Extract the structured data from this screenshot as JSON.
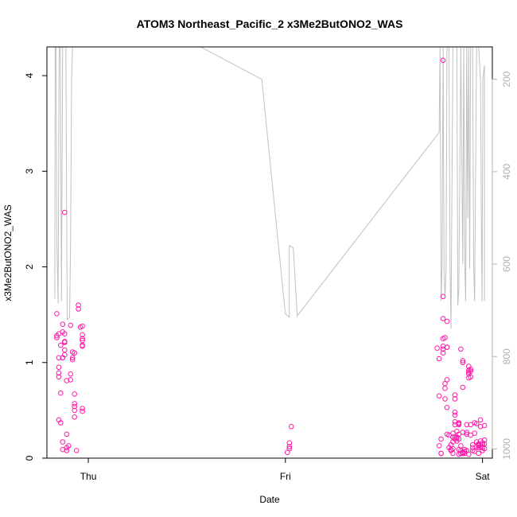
{
  "chart_data": {
    "type": "scatter",
    "title": "ATOM3 Northeast_Pacific_2 x3Me2ButONO2_WAS",
    "xlabel": "Date",
    "ylabel": "x3Me2ButONO2_WAS",
    "x_ticks": [
      {
        "label": "Thu",
        "x": 1.0
      },
      {
        "label": "Fri",
        "x": 2.0
      },
      {
        "label": "Sat",
        "x": 3.0
      }
    ],
    "xlim": [
      0.79,
      3.05
    ],
    "ylim": [
      0,
      4.3
    ],
    "y_ticks": [
      0,
      1,
      2,
      3,
      4
    ],
    "y2_ticks": [
      200,
      400,
      600,
      800,
      1000
    ],
    "y2lim": [
      1020,
      130
    ],
    "point_color": "#ff1aa8",
    "line_color": "#c0c0c0",
    "series": [
      {
        "values": [
          [
            0.84,
            1.28
          ],
          [
            0.84,
            1.51
          ],
          [
            0.84,
            1.26
          ],
          [
            0.85,
            1.3
          ],
          [
            0.85,
            1.05
          ],
          [
            0.85,
            0.95
          ],
          [
            0.85,
            0.89
          ],
          [
            0.85,
            0.85
          ],
          [
            0.85,
            0.4
          ],
          [
            0.86,
            1.18
          ],
          [
            0.86,
            0.68
          ],
          [
            0.86,
            0.37
          ],
          [
            0.87,
            1.4
          ],
          [
            0.87,
            1.32
          ],
          [
            0.87,
            1.05
          ],
          [
            0.87,
            1.05
          ],
          [
            0.87,
            0.17
          ],
          [
            0.87,
            0.09
          ],
          [
            0.88,
            2.57
          ],
          [
            0.88,
            1.3
          ],
          [
            0.88,
            1.22
          ],
          [
            0.88,
            1.21
          ],
          [
            0.88,
            1.13
          ],
          [
            0.88,
            1.08
          ],
          [
            0.89,
            0.81
          ],
          [
            0.89,
            0.25
          ],
          [
            0.89,
            0.11
          ],
          [
            0.89,
            0.08
          ],
          [
            0.9,
            0.13
          ],
          [
            0.91,
            1.39
          ],
          [
            0.91,
            0.88
          ],
          [
            0.91,
            0.82
          ],
          [
            0.92,
            1.11
          ],
          [
            0.92,
            1.05
          ],
          [
            0.92,
            1.03
          ],
          [
            0.93,
            1.1
          ],
          [
            0.93,
            0.67
          ],
          [
            0.93,
            0.57
          ],
          [
            0.93,
            0.54
          ],
          [
            0.93,
            0.5
          ],
          [
            0.93,
            0.43
          ],
          [
            0.94,
            0.08
          ],
          [
            0.95,
            1.56
          ],
          [
            0.95,
            1.6
          ],
          [
            0.96,
            1.37
          ],
          [
            0.97,
            1.38
          ],
          [
            0.97,
            1.29
          ],
          [
            0.97,
            1.25
          ],
          [
            0.97,
            1.23
          ],
          [
            0.97,
            1.18
          ],
          [
            0.97,
            1.17
          ],
          [
            0.97,
            0.52
          ],
          [
            0.97,
            0.49
          ],
          [
            2.01,
            0.06
          ],
          [
            2.02,
            0.1
          ],
          [
            2.02,
            0.16
          ],
          [
            2.02,
            0.12
          ],
          [
            2.03,
            0.33
          ],
          [
            2.77,
            1.15
          ],
          [
            2.78,
            1.04
          ],
          [
            2.78,
            0.65
          ],
          [
            2.78,
            0.13
          ],
          [
            2.79,
            0.05
          ],
          [
            2.79,
            0.05
          ],
          [
            2.79,
            0.2
          ],
          [
            2.8,
            4.16
          ],
          [
            2.8,
            1.69
          ],
          [
            2.8,
            1.46
          ],
          [
            2.8,
            1.25
          ],
          [
            2.8,
            1.17
          ],
          [
            2.8,
            1.14
          ],
          [
            2.8,
            1.1
          ],
          [
            2.81,
            1.26
          ],
          [
            2.81,
            0.78
          ],
          [
            2.81,
            0.73
          ],
          [
            2.81,
            0.62
          ],
          [
            2.82,
            1.43
          ],
          [
            2.82,
            1.16
          ],
          [
            2.82,
            1.16
          ],
          [
            2.82,
            0.82
          ],
          [
            2.82,
            0.53
          ],
          [
            2.82,
            0.25
          ],
          [
            2.83,
            0.24
          ],
          [
            2.83,
            0.11
          ],
          [
            2.84,
            0.14
          ],
          [
            2.84,
            0.09
          ],
          [
            2.84,
            0.08
          ],
          [
            2.85,
            0.1
          ],
          [
            2.85,
            0.05
          ],
          [
            2.85,
            0.22
          ],
          [
            2.85,
            0.17
          ],
          [
            2.85,
            0.26
          ],
          [
            2.85,
            0.22
          ],
          [
            2.86,
            0.62
          ],
          [
            2.86,
            0.66
          ],
          [
            2.86,
            0.48
          ],
          [
            2.86,
            0.45
          ],
          [
            2.86,
            0.38
          ],
          [
            2.86,
            0.35
          ],
          [
            2.86,
            0.2
          ],
          [
            2.86,
            0.22
          ],
          [
            2.87,
            0.28
          ],
          [
            2.87,
            0.18
          ],
          [
            2.87,
            0.21
          ],
          [
            2.87,
            0.22
          ],
          [
            2.88,
            0.35
          ],
          [
            2.88,
            0.36
          ],
          [
            2.88,
            0.37
          ],
          [
            2.88,
            0.25
          ],
          [
            2.88,
            0.2
          ],
          [
            2.88,
            0.09
          ],
          [
            2.88,
            0.04
          ],
          [
            2.89,
            1.14
          ],
          [
            2.89,
            0.13
          ],
          [
            2.89,
            0.08
          ],
          [
            2.89,
            0.05
          ],
          [
            2.9,
            1.0
          ],
          [
            2.9,
            1.02
          ],
          [
            2.9,
            0.74
          ],
          [
            2.9,
            0.27
          ],
          [
            2.9,
            0.05
          ],
          [
            2.9,
            0.06
          ],
          [
            2.9,
            0.05
          ],
          [
            2.91,
            0.07
          ],
          [
            2.91,
            0.09
          ],
          [
            2.91,
            0.05
          ],
          [
            2.92,
            0.08
          ],
          [
            2.92,
            0.35
          ],
          [
            2.92,
            0.27
          ],
          [
            2.92,
            0.25
          ],
          [
            2.93,
            0.96
          ],
          [
            2.93,
            0.92
          ],
          [
            2.93,
            0.9
          ],
          [
            2.93,
            0.88
          ],
          [
            2.93,
            0.84
          ],
          [
            2.93,
            0.04
          ],
          [
            2.94,
            0.93
          ],
          [
            2.94,
            0.91
          ],
          [
            2.94,
            0.85
          ],
          [
            2.94,
            0.35
          ],
          [
            2.94,
            0.24
          ],
          [
            2.95,
            0.08
          ],
          [
            2.95,
            0.11
          ],
          [
            2.95,
            0.14
          ],
          [
            2.96,
            0.26
          ],
          [
            2.96,
            0.37
          ],
          [
            2.96,
            0.07
          ],
          [
            2.97,
            0.36
          ],
          [
            2.97,
            0.17
          ],
          [
            2.97,
            0.12
          ],
          [
            2.98,
            0.14
          ],
          [
            2.98,
            0.13
          ],
          [
            2.98,
            0.11
          ],
          [
            2.98,
            0.15
          ],
          [
            2.98,
            0.05
          ],
          [
            2.99,
            0.4
          ],
          [
            2.99,
            0.33
          ],
          [
            2.99,
            0.18
          ],
          [
            2.99,
            0.12
          ],
          [
            3.0,
            0.16
          ],
          [
            3.0,
            0.14
          ],
          [
            3.0,
            0.11
          ],
          [
            3.0,
            0.08
          ],
          [
            3.01,
            0.34
          ],
          [
            3.01,
            0.19
          ],
          [
            3.01,
            0.15
          ],
          [
            3.01,
            0.1
          ]
        ]
      },
      {
        "axis": "right",
        "line_values": [
          [
            0.83,
            675
          ],
          [
            0.832,
            130
          ],
          [
            0.836,
            130
          ],
          [
            0.84,
            545
          ],
          [
            0.847,
            685
          ],
          [
            0.852,
            130
          ],
          [
            0.858,
            130
          ],
          [
            0.864,
            680
          ],
          [
            0.87,
            130
          ],
          [
            0.886,
            130
          ],
          [
            0.893,
            720
          ],
          [
            0.905,
            715
          ],
          [
            0.91,
            560
          ],
          [
            0.915,
            200
          ],
          [
            0.92,
            130
          ],
          [
            0.95,
            130
          ],
          [
            0.96,
            130
          ],
          [
            1.57,
            130
          ],
          [
            1.88,
            200
          ],
          [
            2.0,
            708
          ],
          [
            2.02,
            715
          ],
          [
            2.02,
            560
          ],
          [
            2.04,
            565
          ],
          [
            2.06,
            712
          ],
          [
            2.78,
            315
          ],
          [
            2.785,
            130
          ],
          [
            2.79,
            680
          ],
          [
            2.795,
            600
          ],
          [
            2.8,
            130
          ],
          [
            2.805,
            610
          ],
          [
            2.81,
            670
          ],
          [
            2.815,
            610
          ],
          [
            2.82,
            130
          ],
          [
            2.83,
            130
          ],
          [
            2.835,
            590
          ],
          [
            2.84,
            740
          ],
          [
            2.85,
            130
          ],
          [
            2.86,
            130
          ],
          [
            2.87,
            130
          ],
          [
            2.875,
            690
          ],
          [
            2.88,
            650
          ],
          [
            2.89,
            130
          ],
          [
            2.9,
            600
          ],
          [
            2.905,
            130
          ],
          [
            2.91,
            600
          ],
          [
            2.915,
            680
          ],
          [
            2.92,
            130
          ],
          [
            2.925,
            500
          ],
          [
            2.93,
            130
          ],
          [
            2.935,
            610
          ],
          [
            2.94,
            130
          ],
          [
            2.95,
            130
          ],
          [
            2.955,
            600
          ],
          [
            2.96,
            680
          ],
          [
            2.97,
            130
          ],
          [
            2.98,
            130
          ],
          [
            2.99,
            200
          ],
          [
            2.995,
            560
          ],
          [
            2.998,
            680
          ],
          [
            3.0,
            430
          ],
          [
            3.002,
            200
          ],
          [
            3.01,
            170
          ],
          [
            3.01,
            680
          ]
        ]
      }
    ]
  }
}
